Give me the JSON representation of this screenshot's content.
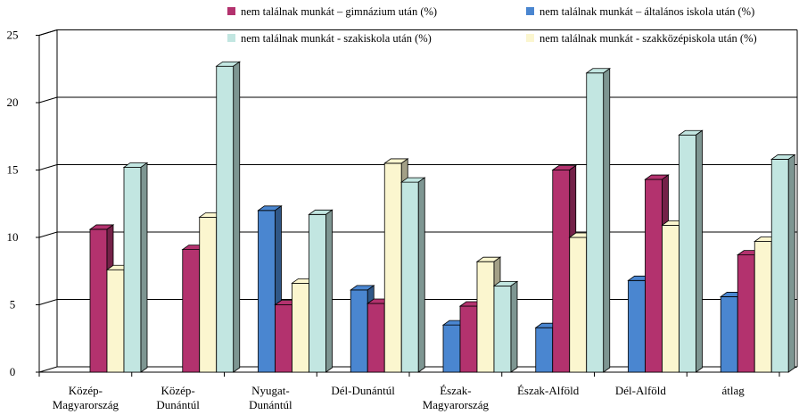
{
  "chart_data": {
    "type": "bar",
    "style": "3d-clustered",
    "categories": [
      [
        "Közép-",
        "Magyarország"
      ],
      [
        "Közép-",
        "Dunántúl"
      ],
      [
        "Nyugat-",
        "Dunántúl"
      ],
      [
        "Dél-Dunántúl"
      ],
      [
        "Észak-",
        "Magyarország"
      ],
      [
        "Észak-Alföld"
      ],
      [
        "Dél-Alföld"
      ],
      [
        "átlag"
      ]
    ],
    "series": [
      {
        "name": "nem találnak munkát – általános iskola után (%)",
        "color": "#4a86d0",
        "values": [
          null,
          null,
          12.0,
          6.1,
          3.5,
          3.3,
          6.8,
          5.6
        ]
      },
      {
        "name": "nem találnak munkát – gimnázium után (%)",
        "color": "#b3326e",
        "values": [
          10.6,
          9.1,
          5.0,
          5.1,
          4.9,
          15.0,
          14.3,
          8.7
        ]
      },
      {
        "name": "nem találnak munkát - szakközépiskola után (%)",
        "color": "#fbf6cf",
        "values": [
          7.6,
          11.5,
          6.6,
          15.5,
          8.2,
          10.0,
          10.9,
          9.7
        ]
      },
      {
        "name": "nem találnak munkát - szakiskola  után (%)",
        "color": "#c2e6e1",
        "values": [
          15.2,
          22.7,
          11.7,
          14.1,
          6.4,
          22.2,
          17.6,
          15.8
        ]
      }
    ],
    "legend_order": [
      1,
      0,
      3,
      2
    ],
    "yticks": [
      0,
      5,
      10,
      15,
      20,
      25
    ],
    "ylim": [
      0,
      25
    ],
    "grid": true,
    "legend_position": "top"
  }
}
